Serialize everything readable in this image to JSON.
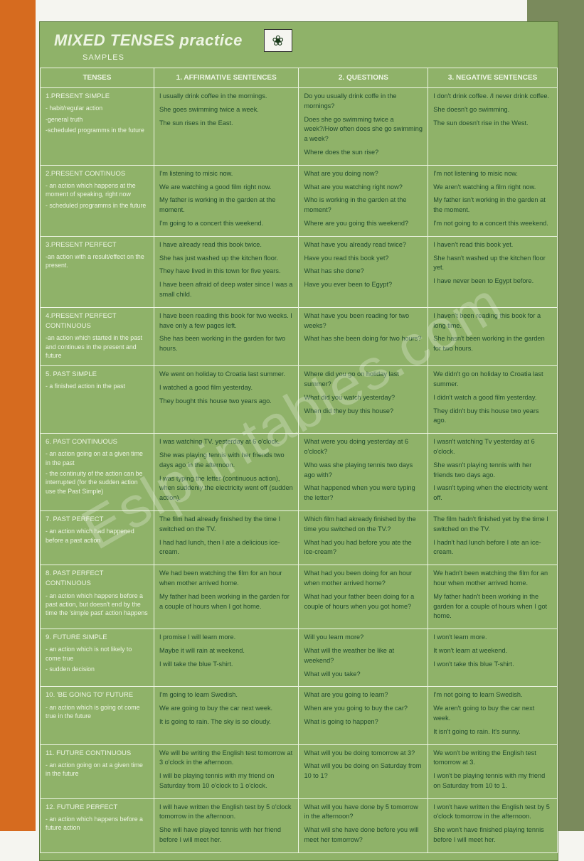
{
  "title": "MIXED TENSES practice",
  "subtitle": "SAMPLES",
  "headers": {
    "tenses": "TENSES",
    "affirmative": "1.    AFFIRMATIVE SENTENCES",
    "questions": "2.    QUESTIONS",
    "negative": "3.    NEGATIVE SENTENCES"
  },
  "watermark": "Eslprintables.com",
  "rows": [
    {
      "name": "1.PRESENT SIMPLE",
      "desc": [
        "- habit/regular action",
        "-general truth",
        "-scheduled programms in the future"
      ],
      "aff": [
        "I usually drink coffee in the mornings.",
        "She goes swimming twice a week.",
        "The sun rises in the East."
      ],
      "q": [
        "Do you usually drink coffe in the mornings?",
        "Does she go swimming twice a week?/How often does she go swimming a week?",
        "Where does the sun rise?"
      ],
      "neg": [
        "I don't drink coffee. /I never drink coffee.",
        "She doesn't go swimming.",
        "The sun doesn't rise in the West."
      ]
    },
    {
      "name": "2.PRESENT CONTINUOS",
      "desc": [
        "- an action which happens at the moment of speaking, right now",
        "- scheduled programms in the future"
      ],
      "aff": [
        "I'm listening to misic now.",
        "We are watching a good film right now.",
        "My father is working in the garden at the moment.",
        "I'm going to a concert this weekend."
      ],
      "q": [
        "What are you doing now?",
        "What are you watching right now?",
        "Who is working in the garden at the moment?",
        "Where are you going this weekend?"
      ],
      "neg": [
        "I'm not listening to misic now.",
        "We aren't watching a film right now.",
        "My father isn't working in the garden at the moment.",
        "I'm not going to a concert this weekend."
      ]
    },
    {
      "name": "3.PRESENT PERFECT",
      "desc": [
        "-an action with a result/effect on the present."
      ],
      "aff": [
        "I have already read this book twice.",
        "She has just washed up the kitchen floor.",
        "They have lived in this town for five years.",
        "I have been afraid of deep water since I was a small child."
      ],
      "q": [
        "What have you already read twice?",
        "Have you read this book yet?",
        "What has she done?",
        "Have you ever been to Egypt?"
      ],
      "neg": [
        "I haven't read this book yet.",
        "She hasn't washed up the kitchen floor yet.",
        "I have never been to Egypt before."
      ]
    },
    {
      "name": "4.PRESENT PERFECT CONTINUOUS",
      "desc": [
        "-an action which started in the past and continues in the present and future"
      ],
      "aff": [
        "I have been reading this book for two weeks. I have only a few pages left.",
        "She has been working in the garden for two hours."
      ],
      "q": [
        "What have you been reading for two weeks?",
        "What has she been doing for two hours?"
      ],
      "neg": [
        "I haven't been reading this book for a long time.",
        "She hasn't been working in the garden for two hours."
      ]
    },
    {
      "name": "5. PAST SIMPLE",
      "desc": [
        "- a finished action in the past"
      ],
      "aff": [
        "We went on holiday to Croatia last summer.",
        "I watched a good film yesterday.",
        "They bought this house two years ago."
      ],
      "q": [
        "Where did you go on holiday last summer?",
        "What did you watch yesterday?",
        "When did they buy this house?"
      ],
      "neg": [
        "We didn't go on holiday to Croatia last summer.",
        "I didn't watch a good film yesterday.",
        "They didn't buy this house two years ago."
      ]
    },
    {
      "name": "6. PAST CONTINUOUS",
      "desc": [
        "- an action going on at a given time in the past",
        "- the continuity of the action can be interrupted (for the sudden action use the Past Simple)"
      ],
      "aff": [
        "I was watching TV. yesterday at 6 o'clock.",
        "She was playing tennis with her friends two days ago in the afternoon.",
        "I was typing the letter (continuous action), when suddenly the electricity went off (sudden action)."
      ],
      "q": [
        "What were you doing yesterday at 6 o'clock?",
        "Who was she playing tennis two days ago with?",
        "What happened when you were typing the letter?"
      ],
      "neg": [
        "I wasn't watching Tv yesterday at 6 o'clock.",
        "She wasn't playing tennis with her friends two days ago.",
        "I wasn't typing when the electricity went off."
      ]
    },
    {
      "name": "7. PAST PERFECT",
      "desc": [
        "- an action which had happened before a past action"
      ],
      "aff": [
        "The film had already finished by the time I switched on the TV.",
        "I had had lunch, then I ate a delicious ice-cream."
      ],
      "q": [
        "Which film had akready finished by the time you switched on the TV.?",
        "What had you had before you ate the ice-cream?"
      ],
      "neg": [
        "The film hadn't finished yet by the time I switched on the TV.",
        "I hadn't had lunch before I ate an ice-cream."
      ]
    },
    {
      "name": "8. PAST PERFECT CONTINUOUS",
      "desc": [
        "- an action which happens before a past action, but doesn't end by the time the 'simple past' action happens"
      ],
      "aff": [
        "We had been watching the film for an hour when mother arrived home.",
        "My father had been working in the garden for a couple of hours when I got home."
      ],
      "q": [
        "What had you been doing for an hour when mother arrived home?",
        "What had your father been doing for a couple of hours when you got home?"
      ],
      "neg": [
        "We hadn't been watching the film for an hour when mother arrived home.",
        "My father hadn't been working in the garden for a couple of hours when I got home."
      ]
    },
    {
      "name": "9. FUTURE SIMPLE",
      "desc": [
        "- an action which is not likely to come true",
        "- sudden decision"
      ],
      "aff": [
        "I promise I will learn more.",
        "Maybe it will rain at weekend.",
        "I will take the blue T-shirt."
      ],
      "q": [
        "Will you learn more?",
        "What will the weather be like at weekend?",
        "What will you take?"
      ],
      "neg": [
        "I won't learn more.",
        "It won't learn at weekend.",
        "I won't take this blue T-shirt."
      ]
    },
    {
      "name": "10. 'BE GOING TO' FUTURE",
      "desc": [
        "- an action which is going ot come true in the future"
      ],
      "aff": [
        "I'm going to learn Swedish.",
        "We are going to buy the car next week.",
        "It is going to rain. The sky is so cloudy."
      ],
      "q": [
        "What are you going to learn?",
        "When are you going to buy the car?",
        "What is going to happen?"
      ],
      "neg": [
        "I'm not going to learn Swedish.",
        "We aren't going to buy the car next week.",
        "It isn't going to rain. It's sunny."
      ]
    },
    {
      "name": "11. FUTURE CONTINUOUS",
      "desc": [
        "- an action going on at a given time in the future"
      ],
      "aff": [
        "We will be writing the English test tomorrow at 3 o'clock in the afternoon.",
        "I will be playing tennis with my friend on Saturday from 10 o'clock to 1 o'clock."
      ],
      "q": [
        "What will you be doing tomorrow at 3?",
        "What will you be doing on Saturday from 10 to 1?"
      ],
      "neg": [
        "We won't be writing the English test tomorrow at 3.",
        "I won't be playing tennis with my friend on Saturday from 10 to 1."
      ]
    },
    {
      "name": "12. FUTURE PERFECT",
      "desc": [
        "- an action which happens before a future action"
      ],
      "aff": [
        "I will have written the English test by 5 o'clock tomorrow in the afternoon.",
        "She will have played tennis with her friend before I will meet her."
      ],
      "q": [
        "What will you have done by 5 tomorrow in the afternoon?",
        "What will she have done before you will meet her tomorrow?"
      ],
      "neg": [
        "I won't have written the English test by 5 o'clock tomorrow in the afternoon.",
        "She won't have finished playing tennis before I will meet her."
      ]
    }
  ]
}
